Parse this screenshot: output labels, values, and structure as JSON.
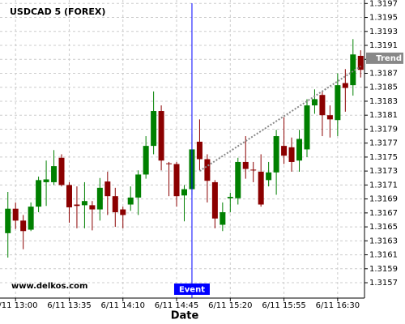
{
  "chart_data": {
    "type": "candlestick",
    "title": "USDCAD 5 (FOREX)",
    "watermark": "www.delkos.com",
    "x_label": "Date",
    "categories": [
      null,
      "6/11 13:00",
      null,
      null,
      null,
      null,
      null,
      null,
      "6/11 13:35",
      null,
      null,
      null,
      null,
      null,
      null,
      "6/11 14:10",
      null,
      null,
      null,
      null,
      null,
      null,
      "6/11 14:45",
      null,
      null,
      null,
      null,
      null,
      null,
      "6/11 15:20",
      null,
      null,
      null,
      null,
      null,
      null,
      "6/11 15:55",
      null,
      null,
      null,
      null,
      null,
      null,
      "6/11 16:30",
      null,
      null,
      null
    ],
    "open": [
      1.31641,
      1.31676,
      1.31659,
      1.31646,
      1.31679,
      1.31714,
      1.31714,
      1.31749,
      1.3171,
      1.31682,
      1.31681,
      1.31681,
      1.31675,
      1.31715,
      1.31694,
      1.31675,
      1.31682,
      1.31692,
      1.31725,
      1.31766,
      1.31816,
      1.31741,
      1.3174,
      1.31695,
      1.31704,
      1.31772,
      1.31747,
      1.31714,
      1.31653,
      1.31691,
      1.31691,
      1.31743,
      1.31732,
      1.31729,
      1.31717,
      1.31728,
      1.31766,
      1.31764,
      1.31745,
      1.31761,
      1.31824,
      1.31839,
      1.3181,
      1.31803,
      1.31856,
      1.31853,
      1.31895
    ],
    "high": [
      1.317,
      1.31685,
      1.31667,
      1.31685,
      1.31722,
      1.31745,
      1.3176,
      1.31754,
      1.31714,
      1.31708,
      1.31714,
      1.31687,
      1.3172,
      1.31729,
      1.31706,
      1.31679,
      1.31708,
      1.31731,
      1.3178,
      1.31844,
      1.31824,
      1.31743,
      1.31743,
      1.3171,
      1.31783,
      1.31804,
      1.31754,
      1.31717,
      1.31685,
      1.31699,
      1.31749,
      1.3178,
      1.31743,
      1.31754,
      1.31743,
      1.31789,
      1.31807,
      1.31778,
      1.31789,
      1.31833,
      1.31847,
      1.31845,
      1.31824,
      1.3187,
      1.31876,
      1.31919,
      1.31903
    ],
    "low": [
      1.31606,
      1.31647,
      1.31618,
      1.31644,
      1.31671,
      1.3168,
      1.3171,
      1.31708,
      1.31656,
      1.31648,
      1.31648,
      1.31645,
      1.31659,
      1.31667,
      1.3165,
      1.31648,
      1.31673,
      1.31667,
      1.31719,
      1.31754,
      1.31731,
      1.31694,
      1.31679,
      1.31658,
      1.31696,
      1.31731,
      1.31685,
      1.31648,
      1.31644,
      1.31671,
      1.31682,
      1.31719,
      1.31714,
      1.31679,
      1.31708,
      1.31696,
      1.3174,
      1.31729,
      1.31729,
      1.3175,
      1.31812,
      1.3178,
      1.31778,
      1.3178,
      1.31815,
      1.31838,
      1.31864
    ],
    "close": [
      1.31676,
      1.31659,
      1.31644,
      1.31679,
      1.31717,
      1.31718,
      1.31737,
      1.3171,
      1.31678,
      1.3168,
      1.31687,
      1.31675,
      1.31706,
      1.31694,
      1.31671,
      1.31667,
      1.31692,
      1.31725,
      1.31766,
      1.31816,
      1.31745,
      1.3174,
      1.31694,
      1.31704,
      1.31761,
      1.31747,
      1.31716,
      1.31662,
      1.31671,
      1.31693,
      1.31743,
      1.31733,
      1.31731,
      1.31682,
      1.31728,
      1.3178,
      1.31752,
      1.31743,
      1.31776,
      1.31824,
      1.31833,
      1.3181,
      1.31804,
      1.31853,
      1.31849,
      1.31897,
      1.31875
    ],
    "up_color": "#008000",
    "down_color": "#8b0000",
    "ylim": [
      1.31548,
      1.31975
    ],
    "yticks": [
      1.3157,
      1.3159,
      1.3161,
      1.3163,
      1.3165,
      1.3167,
      1.3169,
      1.3171,
      1.3173,
      1.3175,
      1.3177,
      1.3179,
      1.3181,
      1.3183,
      1.3185,
      1.3187,
      1.3189,
      1.3191,
      1.3193,
      1.3195,
      1.3197
    ],
    "grid": true,
    "event": {
      "label": "Event",
      "index": 24,
      "color": "#0000ff"
    },
    "trend": {
      "label": "Trend",
      "start_index": 25,
      "start_value": 1.3173,
      "end_index": 46,
      "end_value": 1.3188,
      "color": "#888888"
    }
  }
}
